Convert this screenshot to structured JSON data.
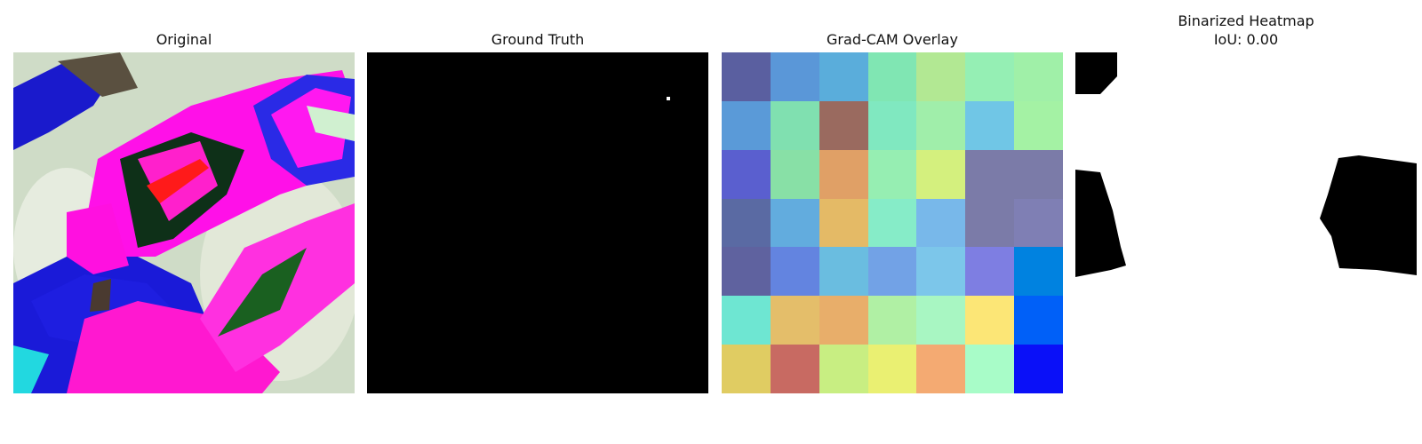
{
  "panels": {
    "original": {
      "title": "Original"
    },
    "ground_truth": {
      "title": "Ground Truth"
    },
    "gradcam": {
      "title": "Grad-CAM Overlay",
      "cells": [
        [
          "#5a5fa0",
          "#5a97d8",
          "#5aaddb",
          "#80e6b3",
          "#b2e893",
          "#95efb4",
          "#a0f0a8"
        ],
        [
          "#5a9ad8",
          "#80e0b0",
          "#9a6a5f",
          "#80e8c0",
          "#a0eeaa",
          "#70c6e6",
          "#a4f2a4"
        ],
        [
          "#5a5fcf",
          "#88e0a6",
          "#e0a066",
          "#96eeb2",
          "#d4f07e",
          "#7b7ba8",
          "#7b7ba8"
        ],
        [
          "#5a6aa3",
          "#62acde",
          "#e4ba66",
          "#86ecc8",
          "#78b8ea",
          "#7b7ba8",
          "#7f7fb4"
        ],
        [
          "#5f629f",
          "#6384e0",
          "#6abde0",
          "#72a2e6",
          "#7cc6ea",
          "#7e7ee2",
          "#0082e0"
        ],
        [
          "#6ee6d2",
          "#e4be6a",
          "#e8ae6a",
          "#b0f0a4",
          "#a8f6c2",
          "#fce676",
          "#0060f8"
        ],
        [
          "#e0cc62",
          "#c86a62",
          "#c8ee82",
          "#eaf072",
          "#f4aa72",
          "#a8fcc8",
          "#0a10f8"
        ]
      ]
    },
    "binarized": {
      "title": "Binarized Heatmap",
      "subtitle": "IoU: 0.00"
    }
  }
}
